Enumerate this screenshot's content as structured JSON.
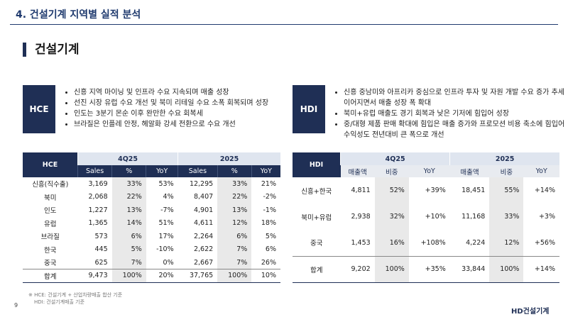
{
  "header": {
    "title": "4. 건설기계 지역별 실적 분석"
  },
  "section": {
    "title": "건설기계"
  },
  "hce_box": {
    "label": "HCE",
    "bullets": [
      "신흥 지역 마이닝 및 인프라 수요 지속되며 매출 성장",
      "선진 시장 유럽 수요 개선 및 북미 리테일 수요 소폭 회복되며 성장",
      "인도는 3분기 몬순 이후 완만한 수요 회복세",
      "브라질은 인플레 안정, 헤알화 강세 전환으로 수요 개선"
    ]
  },
  "hdi_box": {
    "label": "HDI",
    "bullets": [
      "신흥 중남미와 아프리카 중심으로 인프라 투자 및 자원 개발 수요 증가 추세 이어지면서 매출 성장 폭 확대",
      "북미+유럽 매출도 경기 회복과 낮은 기저에 힘입어 성장",
      "중/대형 제품 판매 확대에 힘입은 매출 증가와 프로모션 비용 축소에 힘입어 수익성도 전년대비 큰 폭으로 개선"
    ]
  },
  "hce_table": {
    "corner": "HCE",
    "groups": [
      "4Q25",
      "2025"
    ],
    "columns": [
      "Sales",
      "%",
      "YoY",
      "Sales",
      "%",
      "YoY"
    ],
    "rows": [
      [
        "신흥(직수출)",
        "3,169",
        "33%",
        "53%",
        "12,295",
        "33%",
        "21%"
      ],
      [
        "북미",
        "2,068",
        "22%",
        "4%",
        "8,407",
        "22%",
        "-2%"
      ],
      [
        "인도",
        "1,227",
        "13%",
        "-7%",
        "4,901",
        "13%",
        "-1%"
      ],
      [
        "유럽",
        "1,365",
        "14%",
        "51%",
        "4,611",
        "12%",
        "18%"
      ],
      [
        "브라질",
        "573",
        "6%",
        "17%",
        "2,264",
        "6%",
        "5%"
      ],
      [
        "한국",
        "445",
        "5%",
        "-10%",
        "2,622",
        "7%",
        "6%"
      ],
      [
        "중국",
        "625",
        "7%",
        "0%",
        "2,667",
        "7%",
        "26%"
      ],
      [
        "합계",
        "9,473",
        "100%",
        "20%",
        "37,765",
        "100%",
        "10%"
      ]
    ]
  },
  "hdi_table": {
    "corner": "HDI",
    "groups": [
      "4Q25",
      "2025"
    ],
    "columns": [
      "매출액",
      "비중",
      "YoY",
      "매출액",
      "비중",
      "YoY"
    ],
    "rows": [
      [
        "신흥+한국",
        "4,811",
        "52%",
        "+39%",
        "18,451",
        "55%",
        "+14%"
      ],
      [
        "북미+유럽",
        "2,938",
        "32%",
        "+10%",
        "11,168",
        "33%",
        "+3%"
      ],
      [
        "중국",
        "1,453",
        "16%",
        "+108%",
        "4,224",
        "12%",
        "+56%"
      ],
      [
        "합계",
        "9,202",
        "100%",
        "+35%",
        "33,844",
        "100%",
        "+14%"
      ]
    ]
  },
  "footnotes": [
    "※ HCE: 건설기계 + 산업차량매출 합산 기준",
    "HDI: 건설기계매출 기준"
  ],
  "footer": {
    "page": "9",
    "logo": "HD건설기계"
  }
}
